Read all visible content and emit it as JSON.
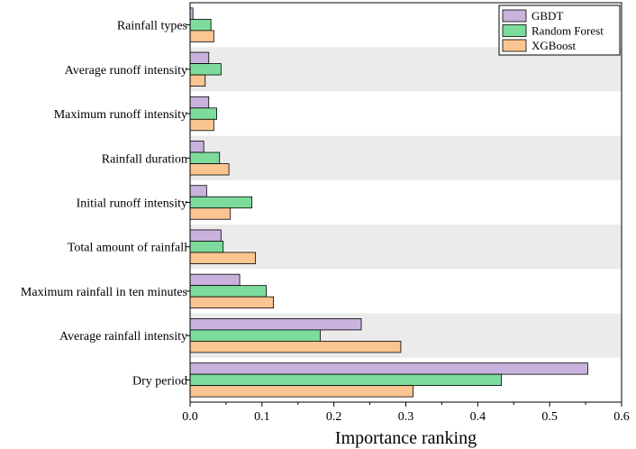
{
  "chart_data": {
    "type": "bar",
    "orientation": "horizontal",
    "title": "",
    "xlabel": "Importance ranking",
    "ylabel": "",
    "xlim": [
      0,
      0.6
    ],
    "xticks": [
      "0.0",
      "0.1",
      "0.2",
      "0.3",
      "0.4",
      "0.5",
      "0.6"
    ],
    "grid": "horizontal-bands",
    "legend_position": "top-right",
    "categories": [
      "Rainfall types",
      "Average runoff intensity",
      "Maximum runoff intensity",
      "Rainfall duration",
      "Initial runoff intensity",
      "Total amount of rainfall",
      "Maximum rainfall in ten minutes",
      "Average rainfall intensity",
      "Dry period"
    ],
    "series": [
      {
        "name": "GBDT",
        "color": "#c9b3dc",
        "values": [
          0.004,
          0.026,
          0.026,
          0.019,
          0.023,
          0.043,
          0.069,
          0.238,
          0.553
        ]
      },
      {
        "name": "Random Forest",
        "color": "#7ddc9c",
        "values": [
          0.029,
          0.043,
          0.037,
          0.041,
          0.086,
          0.046,
          0.106,
          0.181,
          0.433
        ]
      },
      {
        "name": "XGBoost",
        "color": "#fbc592",
        "values": [
          0.033,
          0.021,
          0.033,
          0.054,
          0.056,
          0.091,
          0.116,
          0.293,
          0.31
        ]
      }
    ]
  }
}
